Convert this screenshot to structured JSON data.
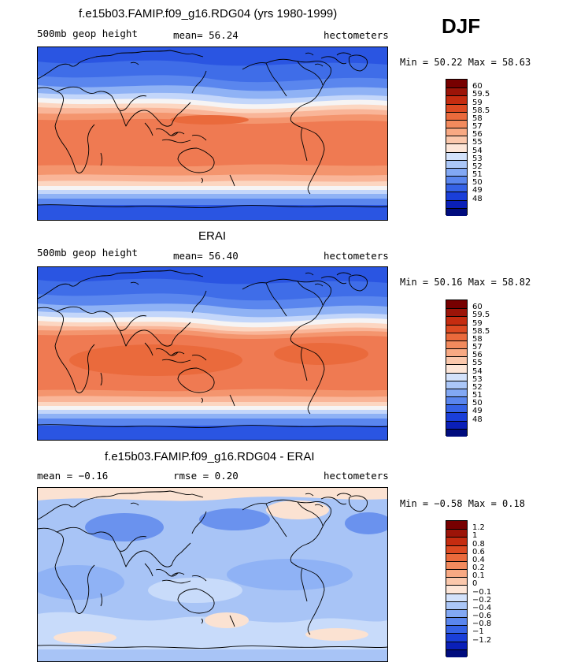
{
  "season": "DJF",
  "panels": [
    {
      "title": "f.e15b03.FAMIP.f09_g16.RDG04 (yrs 1980-1999)",
      "left_label": "500mb geop height",
      "center_label": "mean=  56.24",
      "right_label": "hectometers",
      "minmax": "Min =  50.22 Max =  58.63",
      "mode": "model"
    },
    {
      "title": "ERAI",
      "left_label": "500mb geop height",
      "center_label": "mean=  56.40",
      "right_label": "hectometers",
      "minmax": "Min =  50.16 Max =  58.82",
      "mode": "obs"
    },
    {
      "title": "f.e15b03.FAMIP.f09_g16.RDG04 - ERAI",
      "left_label": "mean =  −0.16",
      "center_label": "rmse =   0.20",
      "right_label": "hectometers",
      "minmax": "Min =  −0.58 Max =   0.18",
      "mode": "diff"
    }
  ],
  "colorbar_colors": [
    "#000c7e",
    "#0a1fb8",
    "#1a3fd9",
    "#3562e6",
    "#5a86ee",
    "#82a8f4",
    "#abc7f8",
    "#d3e2fb",
    "#fde6d8",
    "#fbc8ac",
    "#f8a983",
    "#f28a5d",
    "#ea6a3c",
    "#dd4a22",
    "#c52c10",
    "#9c1408",
    "#770000"
  ],
  "colorbar_labels": {
    "absolute": [
      "60",
      "59.5",
      "59",
      "58.5",
      "58",
      "57",
      "56",
      "55",
      "54",
      "53",
      "52",
      "51",
      "50",
      "49",
      "48"
    ],
    "difference": [
      "1.2",
      "1",
      "0.8",
      "0.6",
      "0.4",
      "0.2",
      "0.1",
      "0",
      "−0.1",
      "−0.2",
      "−0.4",
      "−0.6",
      "−0.8",
      "−1",
      "−1.2"
    ]
  },
  "colors": {
    "blue_dark": "#2a55e2",
    "blue_mid": "#5a86ee",
    "blue_light": "#8fb2f5",
    "blue_pale": "#c3d6fa",
    "white": "#f6f4f4",
    "orange_pale": "#fcd6c1",
    "orange_light": "#f9b598",
    "orange": "#f4956e",
    "orange_dark": "#ef7a52",
    "diff_bg": "#a8c4f6",
    "diff_light": "#c8dbfa",
    "diff_dark": "#6a92ee",
    "diff_pos": "#fbe2d2"
  }
}
